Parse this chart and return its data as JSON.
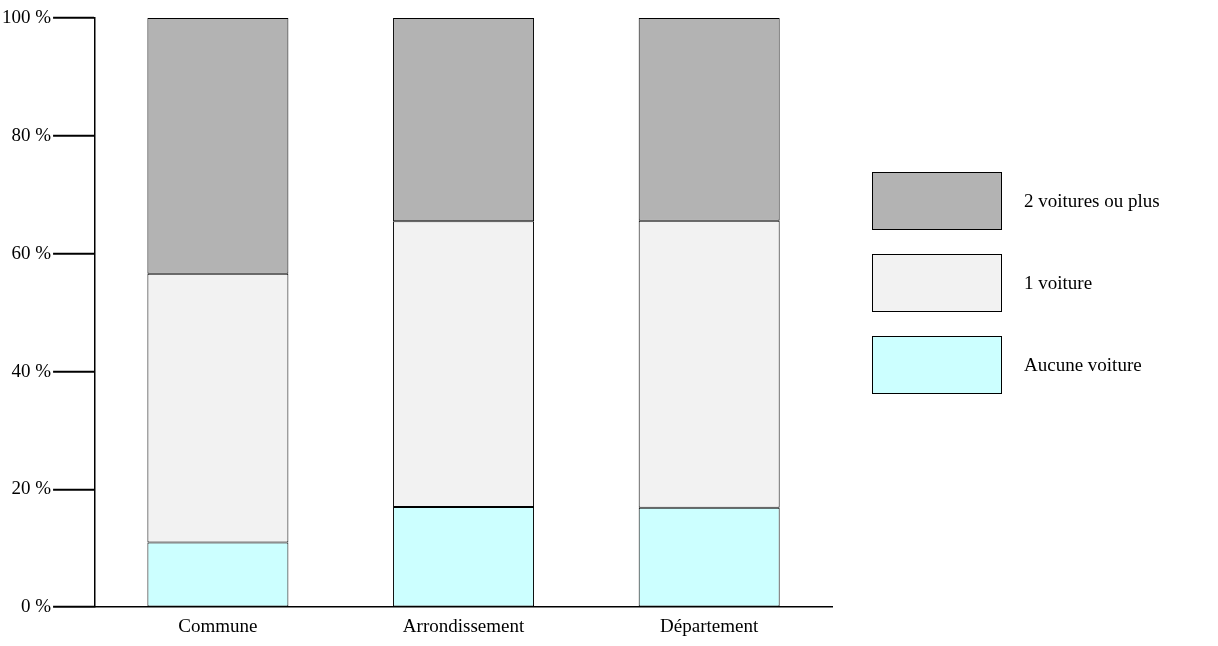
{
  "chart_data": {
    "type": "bar",
    "stacked": true,
    "categories": [
      "Commune",
      "Arrondissement",
      "Département"
    ],
    "series": [
      {
        "name": "Aucune voiture",
        "color": "#ccffff",
        "values": [
          11,
          17,
          16.9
        ]
      },
      {
        "name": "1 voiture",
        "color": "#f2f2f2",
        "values": [
          45.6,
          48.5,
          48.7
        ]
      },
      {
        "name": "2 voitures ou plus",
        "color": "#b3b3b3",
        "values": [
          43.4,
          34.5,
          34.4
        ]
      }
    ],
    "ylim": [
      0,
      100
    ],
    "yticks": [
      {
        "value": 0,
        "label": "0 %"
      },
      {
        "value": 20,
        "label": "20 %"
      },
      {
        "value": 40,
        "label": "40 %"
      },
      {
        "value": 60,
        "label": "60 %"
      },
      {
        "value": 80,
        "label": "80 %"
      },
      {
        "value": 100,
        "label": "100 %"
      }
    ],
    "grid": false,
    "legend": "right"
  }
}
